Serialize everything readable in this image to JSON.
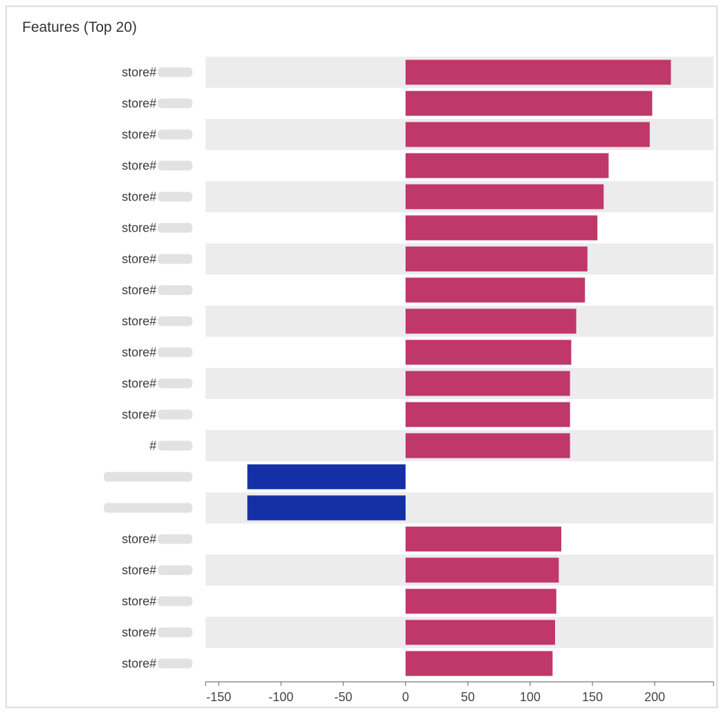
{
  "panel": {
    "title": "Features (Top 20)"
  },
  "chart_data": {
    "type": "bar",
    "orientation": "horizontal",
    "title": "Features (Top 20)",
    "categories": [
      "store#",
      "store#",
      "store#",
      "store#",
      "store#",
      "store#",
      "store#",
      "store#",
      "store#",
      "store#",
      "store#",
      "store#",
      "#",
      "",
      "",
      "store#",
      "store#",
      "store#",
      "store#",
      "store#"
    ],
    "values": [
      213,
      198,
      196,
      163,
      159,
      154,
      146,
      144,
      137,
      133,
      132,
      132,
      132,
      -127,
      -127,
      125,
      123,
      121,
      120,
      118
    ],
    "xlim": [
      -160,
      245
    ],
    "x_ticks": [
      -150,
      -100,
      -50,
      0,
      50,
      100,
      150,
      200
    ],
    "row_banding": true,
    "colors": {
      "positive": "#c0386a",
      "negative": "#1530a6",
      "band": "#ececec"
    },
    "labels_obscured": true
  }
}
